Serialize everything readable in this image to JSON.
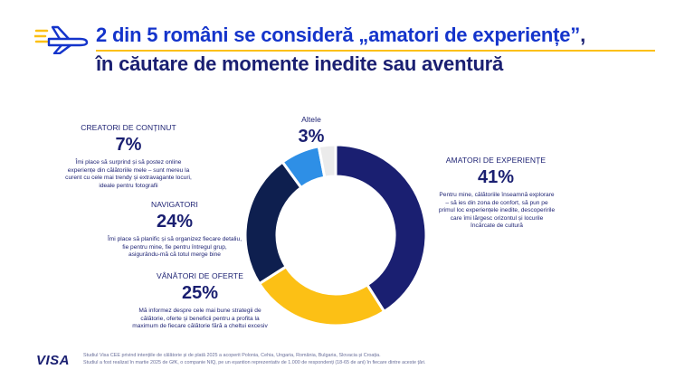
{
  "header": {
    "title_highlight": "2 din 5 români se consideră „amatori de experiențe”",
    "title_comma": ",",
    "title_line2": "în căutare de momente inedite sau aventură",
    "icon": "plane-icon"
  },
  "chart_data": {
    "type": "pie",
    "title": "",
    "colors": [
      "#1a1f71",
      "#fcc015",
      "#0e1f4f",
      "#2e8fe6",
      "#ebebeb"
    ],
    "series": [
      {
        "name": "AMATORI DE EXPERIENȚE",
        "value": 41,
        "label": "41%",
        "description": "Pentru mine, călătoriile înseamnă explorare – să ies din zona de confort, să pun pe primul loc experiențele inedite, descoperirile care îmi lărgesc orizontul și locurile încărcate de cultură"
      },
      {
        "name": "VÂNĂTORI DE OFERTE",
        "value": 25,
        "label": "25%",
        "description": "Mă informez despre cele mai bune strategii de călătorie, oferte și beneficii pentru a profita la maximum de fiecare călătorie fără a cheltui excesiv"
      },
      {
        "name": "NAVIGATORI",
        "value": 24,
        "label": "24%",
        "description": "Îmi place să planific și să organizez fiecare detaliu, fie pentru mine, fie pentru întregul grup, asigurându-mă că totul merge bine"
      },
      {
        "name": "CREATORI DE CONȚINUT",
        "value": 7,
        "label": "7%",
        "description": "Îmi place să surprind și să postez online experiențe din călătoriile mele – sunt mereu la curent cu cele mai trendy și extravagante locuri, ideale pentru fotografii"
      },
      {
        "name": "Altele",
        "value": 3,
        "label": "3%",
        "description": ""
      }
    ]
  },
  "footer": {
    "logo": "VISA",
    "note1": "Studiul Visa CEE privind intențiile de călătorie și de plată 2025 a acoperit Polonia, Cehia, Ungaria, România, Bulgaria, Slovacia și Croația.",
    "note2": "Studiul a fost realizat în martie 2025 de GfK, o companie NIQ, pe un eșantion reprezentativ de 1.000 de respondenți (18-65 de ani) în fiecare dintre aceste țări."
  }
}
